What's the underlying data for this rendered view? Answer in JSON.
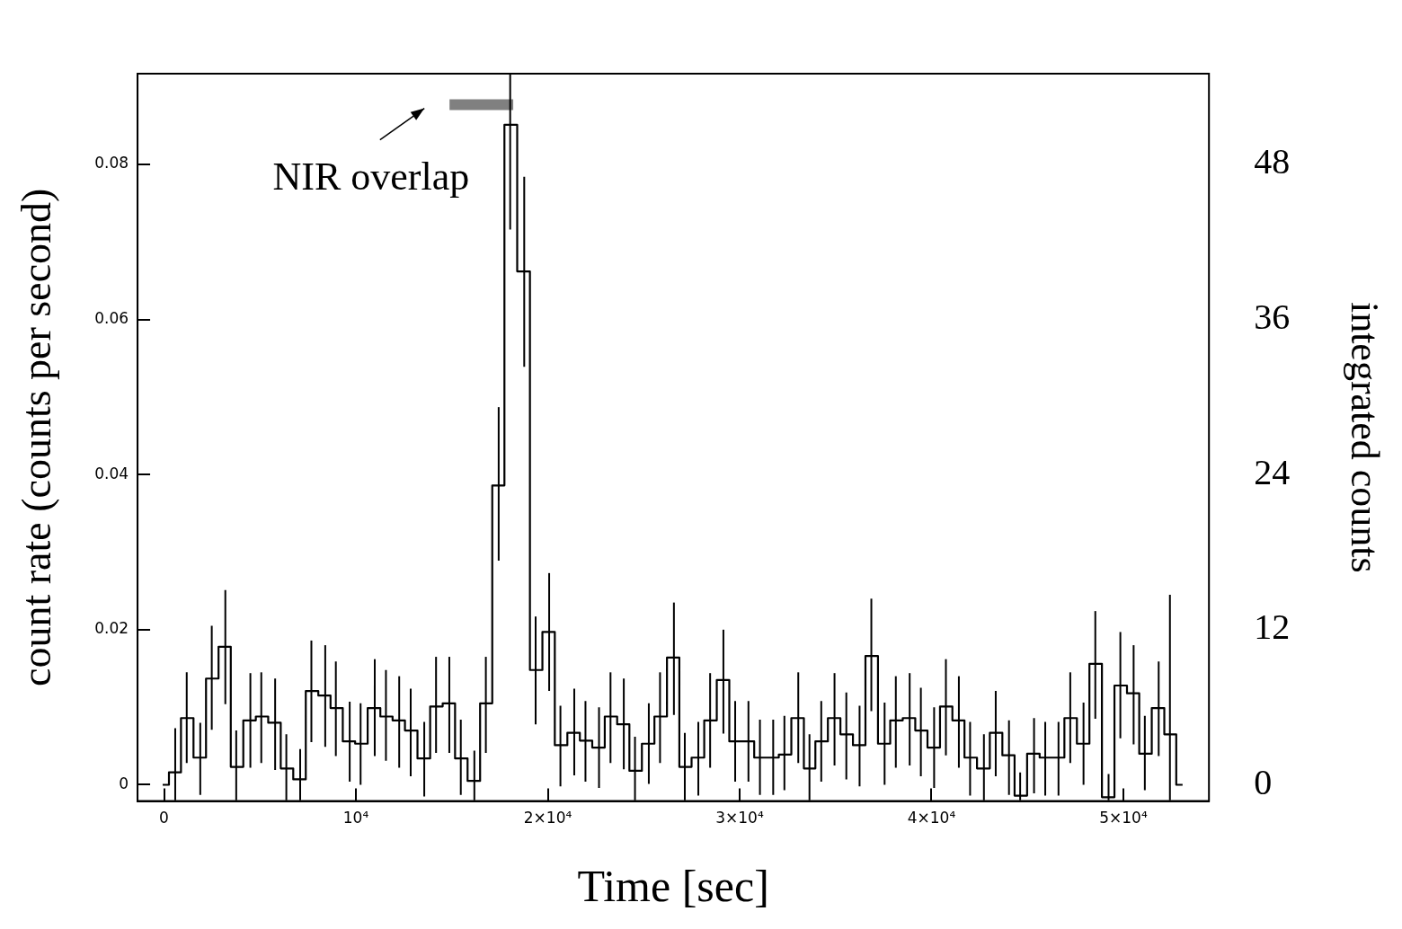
{
  "chart_data": {
    "type": "step",
    "xlabel": "Time [sec]",
    "ylabel": "count rate (counts per second)",
    "y2label": "integrated counts",
    "x": [
      -70,
      584,
      1183,
      1889,
      2488,
      3195,
      3763,
      4500,
      5069,
      5791,
      6374,
      7096,
      7680,
      8402,
      8955,
      9677,
      10245,
      10982,
      11566,
      12257,
      12856,
      13563,
      14177,
      14869,
      15467,
      16174,
      16773,
      17441,
      18041,
      18773,
      19368,
      20073,
      20660,
      21381,
      21965,
      22671,
      23270,
      23962,
      24546,
      25266,
      25851,
      26574,
      27142,
      27847,
      28462,
      29154,
      29768,
      30459,
      31058,
      31749,
      32333,
      33056,
      33640,
      34254,
      34945,
      35560,
      36251,
      36864,
      37555,
      38140,
      38862,
      39445,
      40136,
      40750,
      41426,
      42011,
      42731,
      43347,
      44038,
      44620,
      45344,
      45928,
      46619,
      47232,
      47923,
      48537,
      49228,
      49842,
      50534,
      51118,
      51840,
      52426,
      53085
    ],
    "values": [
      0,
      0.0016,
      0.0086,
      0.0035,
      0.0137,
      0.0178,
      0.0023,
      0.0083,
      0.0088,
      0.008,
      0.0021,
      0.0007,
      0.0121,
      0.0115,
      0.0099,
      0.0056,
      0.0053,
      0.0099,
      0.0088,
      0.0083,
      0.007,
      0.0034,
      0.0101,
      0.0105,
      0.0034,
      0.0005,
      0.0105,
      0.0386,
      0.0851,
      0.0662,
      0.0148,
      0.0197,
      0.0051,
      0.0067,
      0.0057,
      0.0048,
      0.0088,
      0.0078,
      0.0018,
      0.0053,
      0.0088,
      0.0164,
      0.0023,
      0.0035,
      0.0083,
      0.0135,
      0.0056,
      0.0056,
      0.0035,
      0.0035,
      0.0039,
      0.0086,
      0.0021,
      0.0056,
      0.0086,
      0.0065,
      0.0051,
      0.0166,
      0.0053,
      0.0083,
      0.0086,
      0.007,
      0.0048,
      0.0101,
      0.0083,
      0.0035,
      0.0021,
      0.0067,
      0.0038,
      -0.0014,
      0.004,
      0.0035,
      0.0035,
      0.0086,
      0.0053,
      0.0156,
      -0.0016,
      0.0128,
      0.0118,
      0.004,
      0.0099,
      0.0065,
      0
    ],
    "errors": [
      null,
      [
        -0.002,
        0.0073
      ],
      [
        0.0028,
        0.0145
      ],
      [
        -0.0013,
        0.008
      ],
      [
        0.0071,
        0.0205
      ],
      [
        0.0104,
        0.0251
      ],
      [
        -0.002,
        0.007
      ],
      [
        0.0022,
        0.0144
      ],
      [
        0.0028,
        0.0145
      ],
      [
        0.0019,
        0.0137
      ],
      [
        -0.002,
        0.0065
      ],
      [
        -0.002,
        0.0046
      ],
      [
        0.0055,
        0.0186
      ],
      [
        0.0049,
        0.018
      ],
      [
        0.0037,
        0.0159
      ],
      [
        0.0004,
        0.0107
      ],
      [
        0,
        0.0105
      ],
      [
        0.0037,
        0.0162
      ],
      [
        0.0031,
        0.0148
      ],
      [
        0.0022,
        0.014
      ],
      [
        0.0011,
        0.0124
      ],
      [
        -0.0015,
        0.0081
      ],
      [
        0.0041,
        0.0165
      ],
      [
        0.0041,
        0.0165
      ],
      [
        -0.0013,
        0.0084
      ],
      [
        -0.002,
        0.0044
      ],
      [
        0.0041,
        0.0165
      ],
      [
        0.0289,
        0.0487
      ],
      [
        0.0716,
        0.0917
      ],
      [
        0.0539,
        0.0784
      ],
      [
        0.0078,
        0.0217
      ],
      [
        0.0121,
        0.0273
      ],
      [
        -0.0002,
        0.0102
      ],
      [
        0.0012,
        0.0124
      ],
      [
        0.0004,
        0.0108
      ],
      [
        -0.0004,
        0.01
      ],
      [
        0.0028,
        0.0145
      ],
      [
        0.002,
        0.0137
      ],
      [
        -0.002,
        0.0062
      ],
      [
        0.0001,
        0.0105
      ],
      [
        0.0028,
        0.0145
      ],
      [
        0.009,
        0.0235
      ],
      [
        -0.002,
        0.0067
      ],
      [
        -0.0014,
        0.0081
      ],
      [
        0.0022,
        0.0144
      ],
      [
        0.0066,
        0.02
      ],
      [
        0.0004,
        0.0108
      ],
      [
        0.0004,
        0.0108
      ],
      [
        -0.0013,
        0.0084
      ],
      [
        -0.0013,
        0.0084
      ],
      [
        -0.0007,
        0.0089
      ],
      [
        0.0028,
        0.0145
      ],
      [
        -0.002,
        0.0065
      ],
      [
        0.0004,
        0.0108
      ],
      [
        0.0025,
        0.0144
      ],
      [
        0.0007,
        0.0119
      ],
      [
        -0.0002,
        0.0102
      ],
      [
        0.0095,
        0.024
      ],
      [
        0,
        0.0106
      ],
      [
        0.0022,
        0.014
      ],
      [
        0.0025,
        0.0144
      ],
      [
        0.0011,
        0.0125
      ],
      [
        -0.0004,
        0.01
      ],
      [
        0.0038,
        0.0162
      ],
      [
        0.0022,
        0.014
      ],
      [
        -0.0014,
        0.0081
      ],
      [
        -0.002,
        0.0065
      ],
      [
        0.0011,
        0.0121
      ],
      [
        -0.0013,
        0.0083
      ],
      [
        -0.002,
        0.0016
      ],
      [
        -0.0011,
        0.0086
      ],
      [
        -0.0014,
        0.0081
      ],
      [
        -0.0014,
        0.0081
      ],
      [
        0.0028,
        0.0145
      ],
      [
        0,
        0.0106
      ],
      [
        0.0085,
        0.0224
      ],
      [
        -0.002,
        0.0014
      ],
      [
        0.006,
        0.0197
      ],
      [
        0.0052,
        0.018
      ],
      [
        -0.0007,
        0.0089
      ],
      [
        0.0037,
        0.0159
      ],
      [
        -0.002,
        0.0245
      ],
      null
    ],
    "color": "#000000",
    "line_style": "solid",
    "marker": "none",
    "xlim": [
      -1380,
      54460
    ],
    "xticks": [
      0,
      {
        "value": 10000,
        "label": "10⁴"
      },
      {
        "value": 20000,
        "label": "2×10⁴"
      },
      {
        "value": 30000,
        "label": "3×10⁴"
      },
      {
        "value": 40000,
        "label": "4×10⁴"
      },
      {
        "value": 50000,
        "label": "5×10⁴"
      }
    ],
    "ylim": [
      -0.0021,
      0.0917
    ],
    "yticks": [
      0,
      0.02,
      0.04,
      0.06,
      0.08
    ],
    "y2lim": [
      -1.26,
      55.02
    ],
    "y2ticks": [
      0,
      12,
      24,
      36,
      48
    ],
    "series": [
      {
        "type": "line",
        "x": [
          14880,
          18200
        ],
        "values": [
          0.0877,
          0.0877
        ],
        "color": "#808080"
      }
    ],
    "annotations": [
      "NIR overlap"
    ],
    "legend": false,
    "grid": false
  }
}
